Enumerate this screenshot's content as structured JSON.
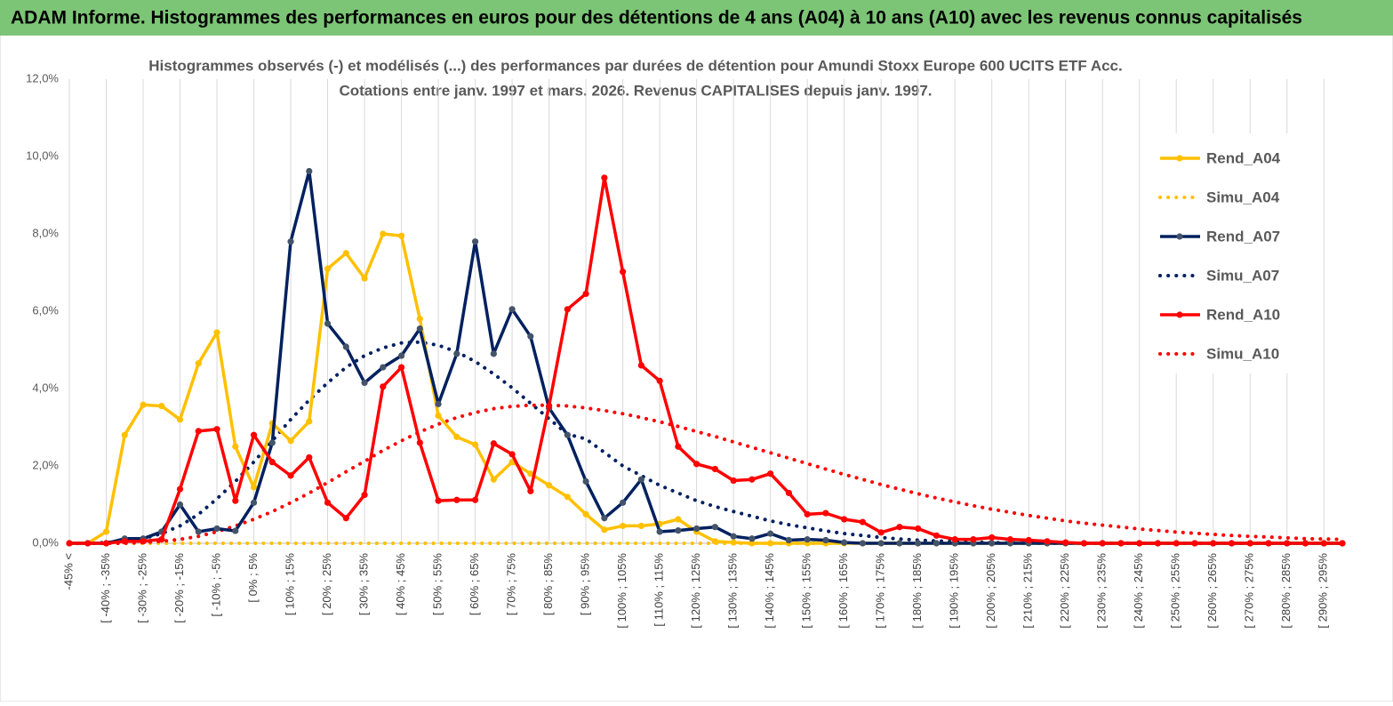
{
  "banner": "ADAM Informe. Histogrammes des performances en euros pour des détentions de 4 ans (A04) à 10 ans (A10) avec les revenus connus capitalisés",
  "chart_data": {
    "type": "line",
    "title": "Histogrammes observés (-)  et modélisés (...) des performances par durées de détention pour Amundi Stoxx Europe 600 UCITS ETF Acc.",
    "subtitle": "Cotations entre janv. 1997 et mars. 2026. Revenus CAPITALISES depuis janv. 1997.",
    "categories": [
      "-45% <",
      null,
      "[ -40% ; -35%",
      null,
      "[ -30% ; -25%",
      null,
      "[ -20% ; -15%",
      null,
      "[ -10% ; -5%",
      null,
      "[ 0% ; 5%",
      null,
      "[ 10% ; 15%",
      null,
      "[ 20% ; 25%",
      null,
      "[ 30% ; 35%",
      null,
      "[ 40% ; 45%",
      null,
      "[ 50% ; 55%",
      null,
      "[ 60% ; 65%",
      null,
      "[ 70% ; 75%",
      null,
      "[ 80% ; 85%",
      null,
      "[ 90% ; 95%",
      null,
      "[ 100% ; 105%",
      null,
      "[ 110% ; 115%",
      null,
      "[ 120% ; 125%",
      null,
      "[ 130% ; 135%",
      null,
      "[ 140% ; 145%",
      null,
      "[ 150% ; 155%",
      null,
      "[ 160% ; 165%",
      null,
      "[ 170% ; 175%",
      null,
      "[ 180% ; 185%",
      null,
      "[ 190% ; 195%",
      null,
      "[ 200% ; 205%",
      null,
      "[ 210% ; 215%",
      null,
      "[ 220% ; 225%",
      null,
      "[ 230% ; 235%",
      null,
      "[ 240% ; 245%",
      null,
      "[ 250% ; 255%",
      null,
      "[ 260% ; 265%",
      null,
      "[ 270% ; 275%",
      null,
      "[ 280% ; 285%",
      null,
      "[ 290% ; 295%",
      null
    ],
    "series": [
      {
        "name": "Rend_A04",
        "color": "#ffc000",
        "style": "solid",
        "values": [
          0,
          0,
          0.3,
          2.8,
          3.58,
          3.55,
          3.2,
          4.65,
          5.45,
          2.5,
          1.45,
          3.1,
          2.65,
          3.15,
          7.1,
          7.5,
          6.85,
          8.0,
          7.95,
          5.8,
          3.3,
          2.75,
          2.55,
          1.65,
          2.1,
          1.8,
          1.5,
          1.2,
          0.75,
          0.35,
          0.45,
          0.45,
          0.5,
          0.62,
          0.3,
          0.05,
          0.02,
          0,
          0,
          0,
          0,
          0,
          0,
          0,
          0,
          0,
          0,
          0,
          0,
          0,
          0,
          0,
          0,
          0,
          0,
          0,
          0,
          0,
          0,
          0,
          0,
          0,
          0,
          0,
          0,
          0,
          0,
          0,
          0,
          0
        ]
      },
      {
        "name": "Simu_A04",
        "color": "#ffc000",
        "style": "dotted",
        "values": [
          0,
          0,
          0,
          0,
          0,
          0,
          0,
          0,
          0,
          0,
          0,
          0,
          0,
          0,
          0,
          0,
          0,
          0,
          0,
          0,
          0,
          0,
          0,
          0,
          0,
          0,
          0,
          0,
          0,
          0,
          0,
          0,
          0,
          0,
          0,
          0,
          0,
          0,
          0,
          0,
          0,
          0,
          0,
          0,
          0,
          0,
          0,
          0,
          0,
          0,
          0,
          0,
          0,
          0,
          0,
          0,
          0,
          0,
          0,
          0,
          0,
          0,
          0,
          0,
          0,
          0,
          0,
          0,
          0,
          0
        ]
      },
      {
        "name": "Rend_A07",
        "color": "#002060",
        "style": "solid",
        "values": [
          0,
          0,
          0,
          0.12,
          0.12,
          0.3,
          1.0,
          0.3,
          0.38,
          0.32,
          1.05,
          2.6,
          7.8,
          9.62,
          5.68,
          5.08,
          4.15,
          4.55,
          4.85,
          5.55,
          3.6,
          4.9,
          7.8,
          4.9,
          6.05,
          5.35,
          3.5,
          2.8,
          1.6,
          0.65,
          1.05,
          1.65,
          0.3,
          0.33,
          0.38,
          0.42,
          0.18,
          0.12,
          0.25,
          0.08,
          0.1,
          0.08,
          0.02,
          0,
          0,
          0,
          0,
          0,
          0,
          0,
          0,
          0,
          0,
          0,
          0,
          0,
          0,
          0,
          0,
          0,
          0,
          0,
          0,
          0,
          0,
          0,
          0,
          0,
          0,
          0
        ]
      },
      {
        "name": "Simu_A07",
        "color": "#002060",
        "style": "dotted",
        "values": [
          0,
          0,
          0.02,
          0.05,
          0.12,
          0.25,
          0.45,
          0.75,
          1.15,
          1.6,
          2.1,
          2.65,
          3.2,
          3.7,
          4.15,
          4.55,
          4.85,
          5.05,
          5.18,
          5.2,
          5.12,
          4.95,
          4.7,
          4.38,
          4.02,
          3.62,
          3.22,
          2.82,
          2.7,
          2.35,
          2.0,
          1.75,
          1.5,
          1.3,
          1.1,
          0.95,
          0.82,
          0.7,
          0.58,
          0.48,
          0.4,
          0.32,
          0.25,
          0.2,
          0.15,
          0.11,
          0.08,
          0.06,
          0.04,
          0.03,
          0.02,
          0.01,
          0,
          0,
          0,
          0,
          0,
          0,
          0,
          0,
          0,
          0,
          0,
          0,
          0,
          0,
          0,
          0,
          0,
          0
        ]
      },
      {
        "name": "Rend_A10",
        "color": "#ff0000",
        "style": "solid",
        "values": [
          0,
          0,
          0,
          0.05,
          0.05,
          0.1,
          1.4,
          2.9,
          2.95,
          1.1,
          2.8,
          2.1,
          1.75,
          2.22,
          1.05,
          0.65,
          1.25,
          4.05,
          4.55,
          2.6,
          1.1,
          1.12,
          1.12,
          2.58,
          2.3,
          1.35,
          3.55,
          6.05,
          6.45,
          9.45,
          7.02,
          4.6,
          4.2,
          2.5,
          2.05,
          1.92,
          1.62,
          1.65,
          1.8,
          1.3,
          0.75,
          0.78,
          0.62,
          0.55,
          0.28,
          0.42,
          0.38,
          0.2,
          0.1,
          0.1,
          0.15,
          0.1,
          0.08,
          0.05,
          0.02,
          0,
          0,
          0,
          0,
          0,
          0,
          0,
          0,
          0,
          0,
          0,
          0,
          0,
          0,
          0
        ]
      },
      {
        "name": "Simu_A10",
        "color": "#ff0000",
        "style": "dotted",
        "values": [
          0,
          0,
          0,
          0,
          0.02,
          0.05,
          0.1,
          0.18,
          0.3,
          0.45,
          0.62,
          0.82,
          1.05,
          1.3,
          1.57,
          1.85,
          2.12,
          2.4,
          2.65,
          2.88,
          3.08,
          3.25,
          3.38,
          3.48,
          3.54,
          3.57,
          3.57,
          3.55,
          3.5,
          3.43,
          3.35,
          3.25,
          3.14,
          3.02,
          2.89,
          2.76,
          2.62,
          2.48,
          2.34,
          2.2,
          2.06,
          1.92,
          1.78,
          1.65,
          1.52,
          1.4,
          1.28,
          1.17,
          1.07,
          0.97,
          0.88,
          0.8,
          0.72,
          0.65,
          0.58,
          0.52,
          0.47,
          0.42,
          0.37,
          0.33,
          0.29,
          0.26,
          0.23,
          0.2,
          0.18,
          0.16,
          0.14,
          0.12,
          0.11,
          0.1
        ]
      }
    ],
    "ylim": [
      0,
      12
    ],
    "yticks": [
      {
        "value": 0,
        "label": "0,0%"
      },
      {
        "value": 2,
        "label": "2,0%"
      },
      {
        "value": 4,
        "label": "4,0%"
      },
      {
        "value": 6,
        "label": "6,0%"
      },
      {
        "value": 8,
        "label": "8,0%"
      },
      {
        "value": 10,
        "label": "10,0%"
      },
      {
        "value": 12,
        "label": "12,0%"
      }
    ],
    "grid": "x",
    "legend": "right"
  }
}
